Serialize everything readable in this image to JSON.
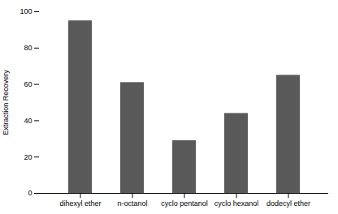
{
  "chart_data": {
    "type": "bar",
    "categories": [
      "dihexyl ether",
      "n-octanol",
      "cyclo pentanol",
      "cyclo hexanol",
      "dodecyl ether"
    ],
    "values": [
      95,
      61,
      29,
      44,
      65
    ],
    "color": "#595959",
    "ylabel": "Extraction Recovery",
    "ylim": [
      0,
      100
    ],
    "yticks": [
      0,
      20,
      40,
      60,
      80,
      100
    ],
    "grid": false
  }
}
